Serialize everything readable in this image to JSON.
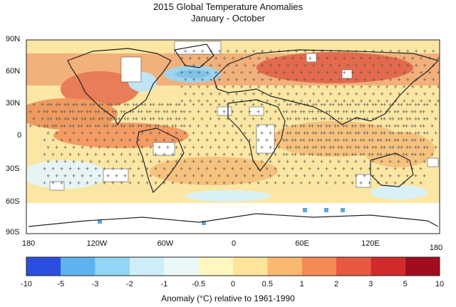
{
  "title": "2015 Global Temperature Anomalies",
  "subtitle": "January - October",
  "map": {
    "latitude_labels": [
      "90N",
      "60N",
      "30N",
      "0",
      "30S",
      "60S",
      "90S"
    ],
    "longitude_labels": [
      "180",
      "120W",
      "60W",
      "0",
      "60E",
      "120E",
      "180"
    ],
    "hatch_marker": "+",
    "colors": {
      "ocean_base": "#fbe7a3",
      "warm_light": "#f6c27e",
      "warm_mid": "#ef9a5f",
      "warm_strong": "#e46a4e",
      "cool_light": "#d9f0f6",
      "cool_mid": "#9fd4ec",
      "coast": "#222222",
      "no_data": "#ffffff"
    }
  },
  "colorbar": {
    "ticks": [
      "-10",
      "-5",
      "-3",
      "-2",
      "-1",
      "-0.5",
      "0",
      "0.5",
      "1",
      "2",
      "3",
      "5",
      "10"
    ],
    "colors": [
      "#2a4fe0",
      "#5fb2ee",
      "#93d5f4",
      "#cdeef8",
      "#ebf8f8",
      "#fff6c0",
      "#fde49a",
      "#f9b870",
      "#f58a57",
      "#e85840",
      "#d12a2a",
      "#a10d1e"
    ],
    "caption": "Anomaly (°C) relative to 1961-1990"
  }
}
